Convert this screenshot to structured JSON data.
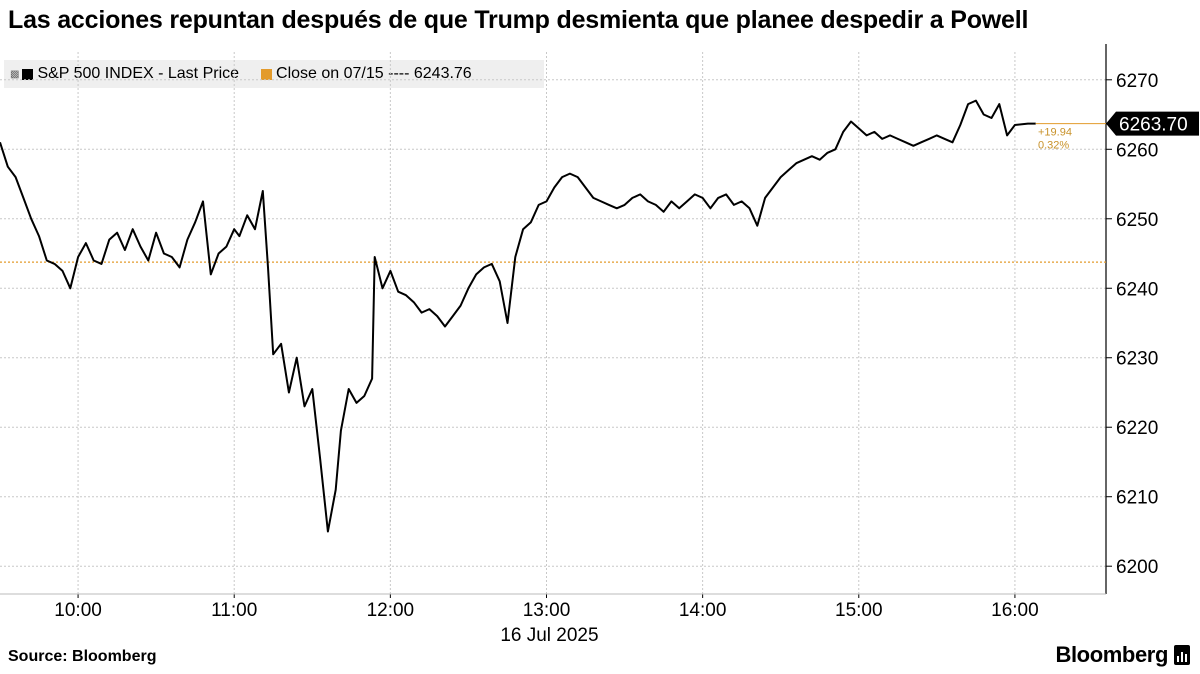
{
  "title": "Las acciones repuntan después de que Trump desmienta que planee despedir a Powell",
  "legend": {
    "series_label": "S&P 500 INDEX - Last Price",
    "close_label": "Close on 07/15 ---- 6243.76"
  },
  "source": "Source: Bloomberg",
  "brand": "Bloomberg",
  "colors": {
    "line": "#000000",
    "close": "#e39b2c",
    "grid": "#c8c8c8",
    "change_text": "#c8922a"
  },
  "chart_data": {
    "type": "line",
    "title": "Las acciones repuntan después de que Trump desmienta que planee despedir a Powell",
    "date_label": "16 Jul 2025",
    "x_ticks": [
      "10:00",
      "11:00",
      "12:00",
      "13:00",
      "14:00",
      "15:00",
      "16:00"
    ],
    "xlim": [
      "09:30",
      "16:35"
    ],
    "y_ticks": [
      6200,
      6210,
      6220,
      6230,
      6240,
      6250,
      6260,
      6270
    ],
    "ylim": [
      6196,
      6274
    ],
    "grid": true,
    "legend_position": "top-left",
    "close_reference": {
      "label": "Close on 07/15",
      "value": 6243.76
    },
    "last_value_label": "6263.70",
    "change_abs": "+19.94",
    "change_pct": "0.32%",
    "series": [
      {
        "name": "S&P 500 INDEX - Last Price",
        "x": [
          "09:30",
          "09:33",
          "09:36",
          "09:39",
          "09:42",
          "09:45",
          "09:48",
          "09:51",
          "09:54",
          "09:57",
          "10:00",
          "10:03",
          "10:06",
          "10:09",
          "10:12",
          "10:15",
          "10:18",
          "10:21",
          "10:24",
          "10:27",
          "10:30",
          "10:33",
          "10:36",
          "10:39",
          "10:42",
          "10:45",
          "10:48",
          "10:51",
          "10:54",
          "10:57",
          "11:00",
          "11:02",
          "11:05",
          "11:08",
          "11:11",
          "11:13",
          "11:15",
          "11:18",
          "11:21",
          "11:24",
          "11:27",
          "11:30",
          "11:33",
          "11:36",
          "11:39",
          "11:41",
          "11:44",
          "11:47",
          "11:50",
          "11:53",
          "11:54",
          "11:57",
          "12:00",
          "12:03",
          "12:06",
          "12:09",
          "12:12",
          "12:15",
          "12:18",
          "12:21",
          "12:24",
          "12:27",
          "12:30",
          "12:33",
          "12:36",
          "12:39",
          "12:42",
          "12:45",
          "12:48",
          "12:51",
          "12:54",
          "12:57",
          "13:00",
          "13:03",
          "13:06",
          "13:09",
          "13:12",
          "13:15",
          "13:18",
          "13:21",
          "13:24",
          "13:27",
          "13:30",
          "13:33",
          "13:36",
          "13:39",
          "13:42",
          "13:45",
          "13:48",
          "13:51",
          "13:54",
          "13:57",
          "14:00",
          "14:03",
          "14:06",
          "14:09",
          "14:12",
          "14:15",
          "14:18",
          "14:21",
          "14:24",
          "14:27",
          "14:30",
          "14:33",
          "14:36",
          "14:39",
          "14:42",
          "14:45",
          "14:48",
          "14:51",
          "14:54",
          "14:57",
          "15:00",
          "15:03",
          "15:06",
          "15:09",
          "15:12",
          "15:15",
          "15:18",
          "15:21",
          "15:24",
          "15:27",
          "15:30",
          "15:33",
          "15:36",
          "15:39",
          "15:42",
          "15:45",
          "15:48",
          "15:51",
          "15:54",
          "15:57",
          "16:00",
          "16:05",
          "16:08"
        ],
        "y": [
          6261.0,
          6257.5,
          6256.0,
          6253.0,
          6250.0,
          6247.5,
          6244.0,
          6243.5,
          6242.5,
          6240.0,
          6244.5,
          6246.5,
          6244.0,
          6243.5,
          6247.0,
          6248.0,
          6245.5,
          6248.5,
          6246.0,
          6244.0,
          6248.0,
          6245.0,
          6244.5,
          6243.0,
          6247.0,
          6249.5,
          6252.5,
          6242.0,
          6245.0,
          6246.0,
          6248.5,
          6247.5,
          6250.5,
          6248.5,
          6254.0,
          6243.0,
          6230.5,
          6232.0,
          6225.0,
          6230.0,
          6223.0,
          6225.5,
          6215.5,
          6205.0,
          6211.0,
          6219.5,
          6225.5,
          6223.5,
          6224.5,
          6227.0,
          6244.5,
          6240.0,
          6242.5,
          6239.5,
          6239.0,
          6238.0,
          6236.5,
          6237.0,
          6236.0,
          6234.5,
          6236.0,
          6237.5,
          6240.0,
          6242.0,
          6243.0,
          6243.5,
          6241.0,
          6235.0,
          6244.5,
          6248.5,
          6249.5,
          6252.0,
          6252.5,
          6254.5,
          6256.0,
          6256.5,
          6256.0,
          6254.5,
          6253.0,
          6252.5,
          6252.0,
          6251.5,
          6252.0,
          6253.0,
          6253.5,
          6252.5,
          6252.0,
          6251.0,
          6252.5,
          6251.5,
          6252.5,
          6253.5,
          6253.0,
          6251.5,
          6253.0,
          6253.5,
          6252.0,
          6252.5,
          6251.5,
          6249.0,
          6253.0,
          6254.5,
          6256.0,
          6257.0,
          6258.0,
          6258.5,
          6259.0,
          6258.5,
          6259.5,
          6260.0,
          6262.5,
          6264.0,
          6263.0,
          6262.0,
          6262.5,
          6261.5,
          6262.0,
          6261.5,
          6261.0,
          6260.5,
          6261.0,
          6261.5,
          6262.0,
          6261.5,
          6261.0,
          6263.5,
          6266.5,
          6267.0,
          6265.0,
          6264.5,
          6266.5,
          6262.0,
          6263.5,
          6263.7,
          6263.7
        ]
      }
    ]
  }
}
